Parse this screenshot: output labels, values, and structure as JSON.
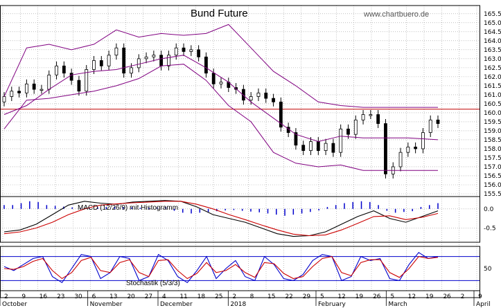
{
  "chart_data": [
    {
      "type": "candlestick",
      "title": "Bund Future",
      "source": "www.chartbuero.de",
      "ylim": [
        155.5,
        165.8
      ],
      "y_ticks": [
        "155.5",
        "156.0",
        "156.5",
        "157.0",
        "157.5",
        "158.0",
        "158.5",
        "159.0",
        "159.5",
        "160.0",
        "160.5",
        "161.0",
        "161.5",
        "162.0",
        "162.5",
        "163.0",
        "163.5",
        "164.0",
        "164.5",
        "165.0",
        "165.5"
      ],
      "resistance_level": 160.2,
      "colors": {
        "candle": "#000000",
        "bands": "#800080",
        "resistance": "#c00000"
      },
      "x_month_labels": [
        "October",
        "November",
        "December",
        "2018",
        "February",
        "March",
        "April"
      ],
      "x_day_labels": [
        "2",
        "9",
        "16",
        "23",
        "30",
        "6",
        "13",
        "20",
        "27",
        "4",
        "11",
        "18",
        "25",
        "2",
        "8",
        "15",
        "22",
        "29",
        "5",
        "12",
        "19",
        "26",
        "5",
        "12",
        "19",
        "26",
        "2",
        "9"
      ],
      "candles_close": [
        160.9,
        161.2,
        161.1,
        161.6,
        161.3,
        161.3,
        162.1,
        162.6,
        162.2,
        161.8,
        161.2,
        162.4,
        162.9,
        162.6,
        163.2,
        163.6,
        162.2,
        162.5,
        163.0,
        163.1,
        163.2,
        162.6,
        163.2,
        163.6,
        163.4,
        163.5,
        163.1,
        162.2,
        161.6,
        161.7,
        161.4,
        161.3,
        160.7,
        160.9,
        161.1,
        160.8,
        160.6,
        159.2,
        158.9,
        158.2,
        157.9,
        158.4,
        157.9,
        158.3,
        157.8,
        159.1,
        158.8,
        159.6,
        159.9,
        159.9,
        159.4,
        156.6,
        157.0,
        157.8,
        158.1,
        158.0,
        158.9,
        159.6,
        159.4
      ],
      "bollinger_upper": [
        160.9,
        163.6,
        163.8,
        163.5,
        163.8,
        164.6,
        164.2,
        164.4,
        164.3,
        164.4,
        164.9,
        163.6,
        162.3,
        161.5,
        160.6,
        160.4,
        160.3,
        160.3,
        160.3
      ],
      "bollinger_mid": [
        159.9,
        160.4,
        161.3,
        162.1,
        162.3,
        162.4,
        162.7,
        163.0,
        163.2,
        162.5,
        161.7,
        160.6,
        159.7,
        158.8,
        158.4,
        158.7,
        158.6,
        158.6,
        158.5
      ],
      "bollinger_lower": [
        159.1,
        160.7,
        160.8,
        161.0,
        161.2,
        161.5,
        161.9,
        162.6,
        162.7,
        161.8,
        160.4,
        159.5,
        157.8,
        157.2,
        157.0,
        157.1,
        156.8,
        156.8,
        156.8
      ],
      "bollinger_x": [
        0,
        3,
        6,
        9,
        12,
        15,
        18,
        21,
        24,
        27,
        30,
        33,
        36,
        39,
        42,
        45,
        48,
        54,
        58
      ]
    },
    {
      "type": "macd",
      "label": "MACD (12/26/9) mit Histogramm",
      "ylim": [
        -0.8,
        0.25
      ],
      "y_ticks": [
        "0.0",
        "-0.5"
      ],
      "histogram": [
        0.1,
        0.1,
        0.15,
        0.2,
        0.18,
        0.1,
        0.08,
        0.06,
        0.04,
        0.02,
        0.03,
        0.04,
        0.05,
        0.06,
        0.05,
        0.04,
        0.03,
        0.03,
        0.04,
        0.05,
        -0.05,
        -0.1,
        -0.12,
        -0.1,
        -0.08,
        -0.06,
        -0.04,
        -0.03,
        -0.05,
        -0.07,
        -0.09,
        -0.12,
        -0.15,
        -0.18,
        -0.15,
        -0.12,
        -0.08,
        -0.04,
        0.05,
        0.1,
        0.15,
        0.18,
        0.2,
        0.18,
        0.1,
        -0.05,
        -0.1,
        -0.08,
        -0.06,
        0.05,
        0.1,
        0.15
      ],
      "macd": [
        -0.6,
        -0.55,
        -0.4,
        -0.15,
        0.1,
        0.2,
        0.15,
        0.12,
        0.18,
        0.2,
        0.22,
        0.2,
        0.05,
        -0.15,
        -0.25,
        -0.35,
        -0.5,
        -0.65,
        -0.72,
        -0.7,
        -0.6,
        -0.4,
        -0.2,
        -0.05,
        -0.25,
        -0.35,
        -0.2,
        -0.05
      ],
      "signal": [
        -0.65,
        -0.6,
        -0.5,
        -0.35,
        -0.15,
        0.0,
        0.1,
        0.13,
        0.16,
        0.18,
        0.2,
        0.2,
        0.12,
        0.0,
        -0.15,
        -0.28,
        -0.42,
        -0.55,
        -0.66,
        -0.7,
        -0.68,
        -0.55,
        -0.38,
        -0.2,
        -0.18,
        -0.28,
        -0.22,
        -0.12
      ]
    },
    {
      "type": "stochastic",
      "label": "Stochastik (5/3/3)",
      "ylim": [
        0,
        100
      ],
      "y_ticks": [
        "50"
      ],
      "k": [
        55,
        45,
        60,
        75,
        80,
        30,
        15,
        50,
        85,
        80,
        25,
        40,
        80,
        75,
        20,
        30,
        85,
        70,
        30,
        15,
        45,
        80,
        25,
        50,
        70,
        30,
        20,
        80,
        60,
        25,
        20,
        35,
        70,
        85,
        80,
        20,
        30,
        80,
        70,
        75,
        25,
        20,
        60,
        90,
        75,
        80
      ],
      "d": [
        50,
        48,
        55,
        68,
        75,
        45,
        25,
        40,
        70,
        78,
        45,
        40,
        65,
        72,
        40,
        30,
        70,
        72,
        45,
        25,
        38,
        65,
        40,
        45,
        60,
        40,
        28,
        65,
        62,
        38,
        25,
        30,
        55,
        75,
        80,
        40,
        32,
        65,
        72,
        72,
        40,
        28,
        50,
        80,
        75,
        78
      ]
    }
  ]
}
